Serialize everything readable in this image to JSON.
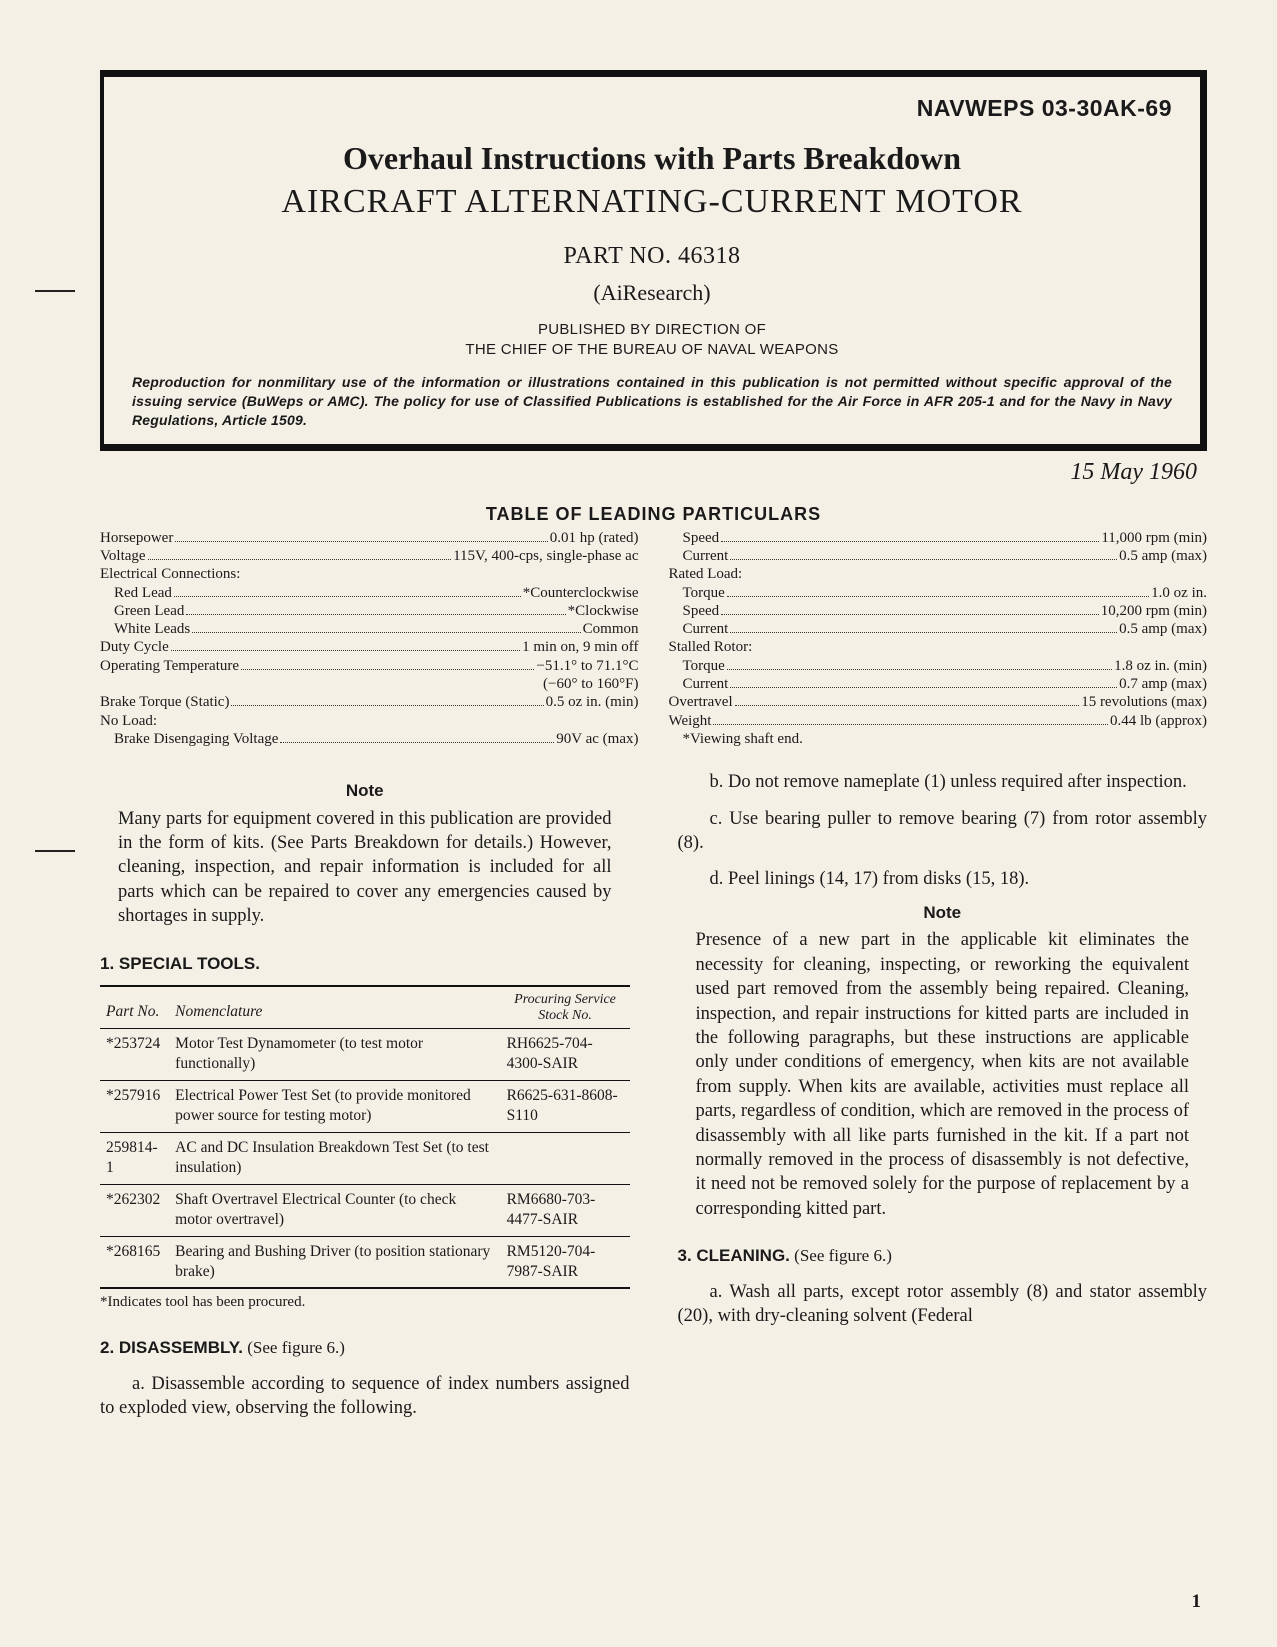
{
  "docnum": "NAVWEPS 03-30AK-69",
  "title1": "Overhaul Instructions with Parts Breakdown",
  "title2": "AIRCRAFT ALTERNATING-CURRENT MOTOR",
  "partno": "PART NO. 46318",
  "airesearch": "(AiResearch)",
  "pubby1": "PUBLISHED BY DIRECTION OF",
  "pubby2": "THE CHIEF OF THE BUREAU OF NAVAL WEAPONS",
  "repro": "Reproduction for nonmilitary use of the information or illustrations contained in this publication is not permitted without specific approval of the issuing service (BuWeps or AMC). The policy for use of Classified Publications is established for the Air Force in AFR 205-1 and for the Navy in Navy Regulations, Article 1509.",
  "date": "15 May 1960",
  "tol_title": "TABLE OF LEADING PARTICULARS",
  "tol_left": [
    {
      "lbl": "Horsepower",
      "val": "0.01 hp (rated)",
      "indent": 0
    },
    {
      "lbl": "Voltage",
      "val": "115V, 400-cps, single-phase ac",
      "indent": 0
    },
    {
      "lbl": "Electrical Connections:",
      "val": "",
      "indent": 0,
      "nodots": true
    },
    {
      "lbl": "Red Lead",
      "val": "*Counterclockwise",
      "indent": 1
    },
    {
      "lbl": "Green Lead",
      "val": "*Clockwise",
      "indent": 1
    },
    {
      "lbl": "White Leads",
      "val": "Common",
      "indent": 1
    },
    {
      "lbl": "Duty Cycle",
      "val": "1 min on, 9 min off",
      "indent": 0
    },
    {
      "lbl": "Operating Temperature",
      "val": "−51.1° to 71.1°C",
      "indent": 0
    },
    {
      "lbl": "",
      "val": "(−60° to 160°F)",
      "indent": 0,
      "nodots": true,
      "right": true
    },
    {
      "lbl": "Brake Torque (Static)",
      "val": "0.5 oz in. (min)",
      "indent": 0
    },
    {
      "lbl": "No Load:",
      "val": "",
      "indent": 0,
      "nodots": true
    },
    {
      "lbl": "Brake Disengaging Voltage",
      "val": "90V ac (max)",
      "indent": 1
    }
  ],
  "tol_right": [
    {
      "lbl": "Speed",
      "val": "11,000 rpm (min)",
      "indent": 1
    },
    {
      "lbl": "Current",
      "val": "0.5 amp (max)",
      "indent": 1
    },
    {
      "lbl": "Rated Load:",
      "val": "",
      "indent": 0,
      "nodots": true
    },
    {
      "lbl": "Torque",
      "val": "1.0 oz in.",
      "indent": 1
    },
    {
      "lbl": "Speed",
      "val": "10,200 rpm (min)",
      "indent": 1
    },
    {
      "lbl": "Current",
      "val": "0.5 amp (max)",
      "indent": 1
    },
    {
      "lbl": "Stalled Rotor:",
      "val": "",
      "indent": 0,
      "nodots": true
    },
    {
      "lbl": "Torque",
      "val": "1.8 oz in. (min)",
      "indent": 1
    },
    {
      "lbl": "Current",
      "val": "0.7 amp (max)",
      "indent": 1
    },
    {
      "lbl": "Overtravel",
      "val": "15 revolutions (max)",
      "indent": 0
    },
    {
      "lbl": "Weight",
      "val": "0.44 lb (approx)",
      "indent": 0
    },
    {
      "lbl": "*Viewing shaft end.",
      "val": "",
      "indent": 1,
      "nodots": true
    }
  ],
  "note1_hd": "Note",
  "note1": "Many parts for equipment covered in this publication are provided in the form of kits. (See Parts Breakdown for details.) However, cleaning, inspection, and repair information is included for all parts which can be repaired to cover any emergencies caused by shortages in supply.",
  "sec1": "1. SPECIAL TOOLS.",
  "th1": "Part No.",
  "th2": "Nomenclature",
  "th3a": "Procuring Service",
  "th3b": "Stock No.",
  "tools": [
    {
      "pn": "*253724",
      "nom": "Motor Test Dynamometer (to test motor functionally)",
      "st": "RH6625-704-4300-SAIR"
    },
    {
      "pn": "*257916",
      "nom": "Electrical Power Test Set (to provide monitored power source for testing motor)",
      "st": "R6625-631-8608-S110"
    },
    {
      "pn": "259814-1",
      "nom": "AC and DC Insulation Breakdown Test Set (to test insulation)",
      "st": ""
    },
    {
      "pn": "*262302",
      "nom": "Shaft Overtravel Electrical Counter (to check motor overtravel)",
      "st": "RM6680-703-4477-SAIR"
    },
    {
      "pn": "*268165",
      "nom": "Bearing and Bushing Driver (to position stationary brake)",
      "st": "RM5120-704-7987-SAIR"
    }
  ],
  "toolsnote": "*Indicates tool has been procured.",
  "sec2": "2. DISASSEMBLY.",
  "sec2ref": " (See figure 6.)",
  "p2a": "a. Disassemble according to sequence of index numbers assigned to exploded view, observing the following.",
  "p2b": "b. Do not remove nameplate (1) unless required after inspection.",
  "p2c": "c. Use bearing puller to remove bearing (7) from rotor assembly (8).",
  "p2d": "d. Peel linings (14, 17) from disks (15, 18).",
  "note2_hd": "Note",
  "note2": "Presence of a new part in the applicable kit eliminates the necessity for cleaning, inspecting, or reworking the equivalent used part removed from the assembly being repaired. Cleaning, inspection, and repair instructions for kitted parts are included in the following paragraphs, but these instructions are applicable only under conditions of emergency, when kits are not available from supply. When kits are available, activities must replace all parts, regardless of condition, which are removed in the process of disassembly with all like parts furnished in the kit. If a part not normally removed in the process of disassembly is not defective, it need not be removed solely for the purpose of replacement by a corresponding kitted part.",
  "sec3": "3. CLEANING.",
  "sec3ref": " (See figure 6.)",
  "p3a": "a. Wash all parts, except rotor assembly (8) and stator assembly (20), with dry-cleaning solvent (Federal",
  "pagenum": "1"
}
